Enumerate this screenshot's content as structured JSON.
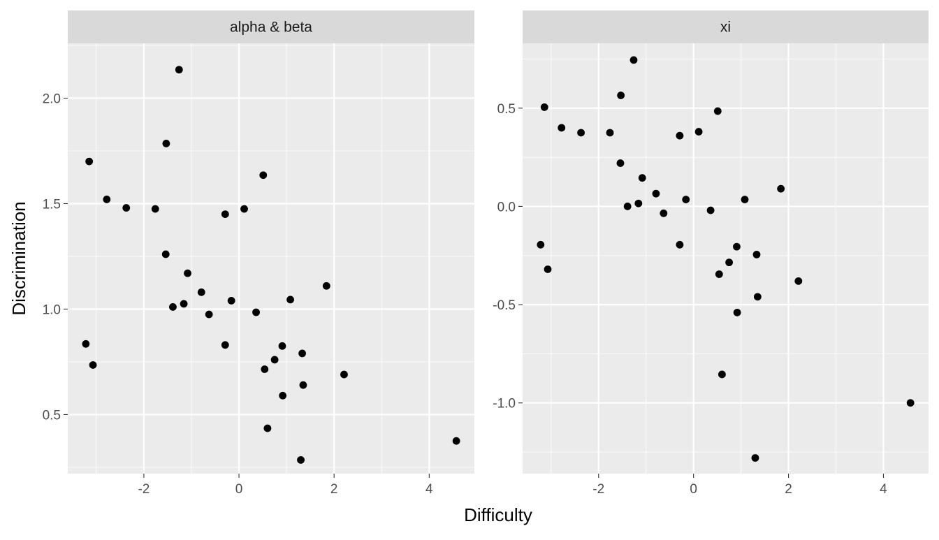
{
  "chart_data": {
    "type": "scatter",
    "xlabel": "Difficulty",
    "ylabel": "Discrimination",
    "xlim": [
      -3.6,
      4.95
    ],
    "x_ticks": [
      -2,
      0,
      2,
      4
    ],
    "grid": true,
    "panels": [
      {
        "strip_label": "alpha & beta",
        "ylim": [
          0.22,
          2.26
        ],
        "y_ticks": [
          0.5,
          1.0,
          1.5,
          2.0
        ],
        "y_tick_labels": [
          "0.5",
          "1.0",
          "1.5",
          "2.0"
        ],
        "points": [
          {
            "x": -3.22,
            "y": 0.835
          },
          {
            "x": -3.15,
            "y": 1.7
          },
          {
            "x": -3.07,
            "y": 0.735
          },
          {
            "x": -2.78,
            "y": 1.52
          },
          {
            "x": -2.37,
            "y": 1.48
          },
          {
            "x": -1.76,
            "y": 1.475
          },
          {
            "x": -1.53,
            "y": 1.785
          },
          {
            "x": -1.54,
            "y": 1.26
          },
          {
            "x": -1.39,
            "y": 1.01
          },
          {
            "x": -1.26,
            "y": 2.135
          },
          {
            "x": -1.16,
            "y": 1.025
          },
          {
            "x": -1.08,
            "y": 1.17
          },
          {
            "x": -0.79,
            "y": 1.08
          },
          {
            "x": -0.63,
            "y": 0.975
          },
          {
            "x": -0.29,
            "y": 1.45
          },
          {
            "x": -0.29,
            "y": 0.83
          },
          {
            "x": -0.16,
            "y": 1.04
          },
          {
            "x": 0.11,
            "y": 1.475
          },
          {
            "x": 0.36,
            "y": 0.985
          },
          {
            "x": 0.51,
            "y": 1.635
          },
          {
            "x": 0.54,
            "y": 0.715
          },
          {
            "x": 0.6,
            "y": 0.435
          },
          {
            "x": 0.75,
            "y": 0.76
          },
          {
            "x": 0.91,
            "y": 0.825
          },
          {
            "x": 0.92,
            "y": 0.59
          },
          {
            "x": 1.08,
            "y": 1.045
          },
          {
            "x": 1.3,
            "y": 0.285
          },
          {
            "x": 1.33,
            "y": 0.79
          },
          {
            "x": 1.35,
            "y": 0.64
          },
          {
            "x": 1.84,
            "y": 1.11
          },
          {
            "x": 2.21,
            "y": 0.69
          },
          {
            "x": 4.57,
            "y": 0.375
          }
        ]
      },
      {
        "strip_label": "xi",
        "ylim": [
          -1.36,
          0.83
        ],
        "y_ticks": [
          -1.0,
          -0.5,
          0.0,
          0.5
        ],
        "y_tick_labels": [
          "-1.0",
          "-0.5",
          "0.0",
          "0.5"
        ],
        "points": [
          {
            "x": -3.22,
            "y": -0.195
          },
          {
            "x": -3.14,
            "y": 0.505
          },
          {
            "x": -3.07,
            "y": -0.32
          },
          {
            "x": -2.78,
            "y": 0.4
          },
          {
            "x": -2.37,
            "y": 0.375
          },
          {
            "x": -1.76,
            "y": 0.375
          },
          {
            "x": -1.53,
            "y": 0.565
          },
          {
            "x": -1.54,
            "y": 0.22
          },
          {
            "x": -1.39,
            "y": 0.0
          },
          {
            "x": -1.26,
            "y": 0.745
          },
          {
            "x": -1.16,
            "y": 0.015
          },
          {
            "x": -1.08,
            "y": 0.145
          },
          {
            "x": -0.79,
            "y": 0.065
          },
          {
            "x": -0.63,
            "y": -0.035
          },
          {
            "x": -0.29,
            "y": 0.36
          },
          {
            "x": -0.29,
            "y": -0.195
          },
          {
            "x": -0.16,
            "y": 0.035
          },
          {
            "x": 0.11,
            "y": 0.38
          },
          {
            "x": 0.36,
            "y": -0.02
          },
          {
            "x": 0.51,
            "y": 0.485
          },
          {
            "x": 0.54,
            "y": -0.345
          },
          {
            "x": 0.6,
            "y": -0.855
          },
          {
            "x": 0.75,
            "y": -0.285
          },
          {
            "x": 0.91,
            "y": -0.205
          },
          {
            "x": 0.92,
            "y": -0.54
          },
          {
            "x": 1.08,
            "y": 0.035
          },
          {
            "x": 1.3,
            "y": -1.28
          },
          {
            "x": 1.33,
            "y": -0.245
          },
          {
            "x": 1.35,
            "y": -0.46
          },
          {
            "x": 1.84,
            "y": 0.09
          },
          {
            "x": 2.21,
            "y": -0.38
          },
          {
            "x": 4.57,
            "y": -1.0
          }
        ]
      }
    ]
  },
  "colors": {
    "panel_background": "#ebebeb",
    "strip_background": "#d9d9d9",
    "grid_major": "#ffffff",
    "point": "#000000",
    "tick": "#333333"
  }
}
